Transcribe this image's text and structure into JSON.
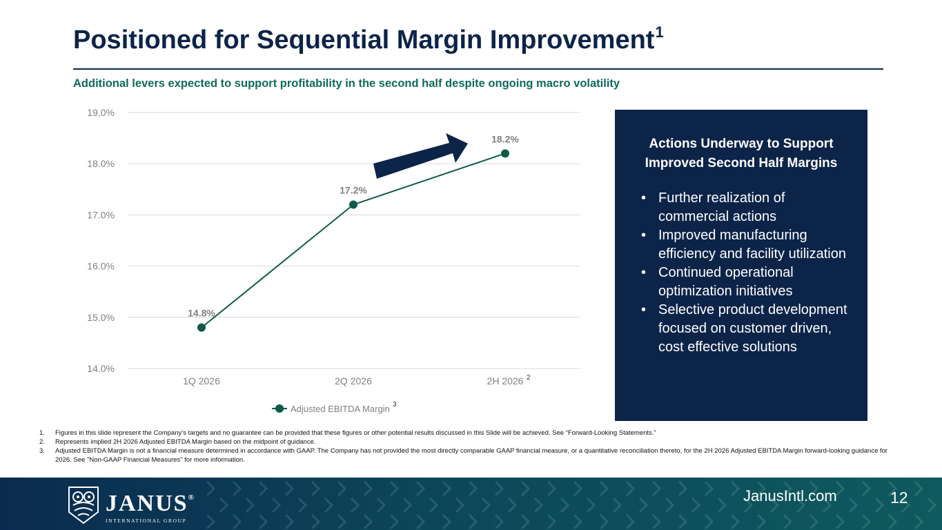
{
  "slide": {
    "title": "Positioned for Sequential Margin Improvement",
    "title_sup": "1",
    "subtitle": "Additional levers expected to support profitability in the second half despite ongoing macro volatility"
  },
  "chart_data": {
    "type": "line",
    "categories": [
      "1Q 2026",
      "2Q 2026",
      "2H 2026"
    ],
    "category_superscripts": [
      "",
      "",
      "2"
    ],
    "series": [
      {
        "name": "Adjusted EBITDA Margin",
        "values": [
          14.8,
          17.2,
          18.2
        ],
        "color": "#0e5a4a"
      }
    ],
    "data_labels": [
      "14.8%",
      "17.2%",
      "18.2%"
    ],
    "yticks": [
      "14.0%",
      "15.0%",
      "16.0%",
      "17.0%",
      "18.0%",
      "19.0%"
    ],
    "ylim": [
      14.0,
      19.0
    ],
    "grid": true,
    "legend_position": "bottom",
    "legend_superscript": "3",
    "annotation": "up-right-arrow",
    "colors": {
      "line": "#0e5a4a",
      "arrow": "#0d2449",
      "grid": "#d9d9d9",
      "labels": "#7f7f7f"
    }
  },
  "panel": {
    "heading_line1": "Actions Underway to Support",
    "heading_line2": "Improved Second Half Margins",
    "bullet_glyph": "•",
    "bullets": [
      "Further realization of commercial actions",
      "Improved manufacturing efficiency and facility utilization",
      "Continued operational optimization initiatives",
      "Selective product development focused on customer driven, cost effective solutions"
    ]
  },
  "footnotes": [
    {
      "num": "1.",
      "text": "Figures in this slide represent the Company’s targets and no guarantee can be provided that these figures or other potential results discussed in this Slide will be achieved. See “Forward-Looking Statements.”"
    },
    {
      "num": "2.",
      "text": "Represents implied 2H 2026 Adjusted EBITDA Margin based on the midpoint of guidance."
    },
    {
      "num": "3.",
      "text": "Adjusted EBITDA Margin is not a financial measure determined in accordance with GAAP. The Company has not provided the most directly comparable GAAP financial measure, or a quantitative reconciliation thereto, for the 2H 2026 Adjusted EBITDA Margin forward-looking guidance for 2026. See \"Non-GAAP Financial Measures\" for more information."
    }
  ],
  "footer": {
    "logo_main": "JANUS",
    "logo_reg": "®",
    "logo_sub": "INTERNATIONAL GROUP",
    "website": "JanusIntl.com",
    "page_number": "12",
    "colors": {
      "left": "#0a2b4f",
      "right": "#0e5a5e"
    }
  }
}
